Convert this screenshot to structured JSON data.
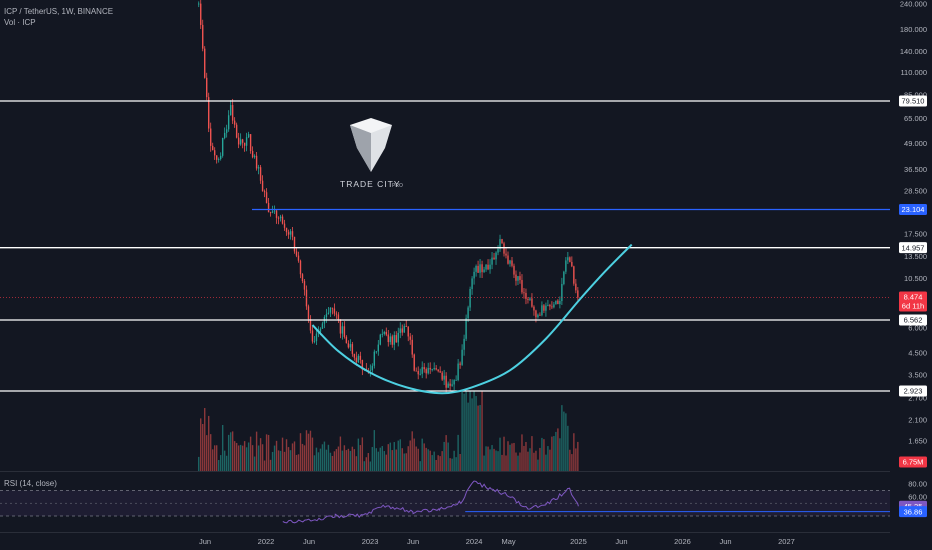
{
  "header": {
    "symbol_line": "ICP / TetherUS, 1W, BINANCE",
    "volume_line": "Vol · ICP"
  },
  "rsi": {
    "label": "RSI (14, close)",
    "value": "45.25",
    "ma_value": "36.86",
    "axis_labels": [
      "80.00",
      "60.00"
    ],
    "upper_band": 70,
    "lower_band": 30
  },
  "watermark": {
    "brand": "TRADE CITY",
    "suffix": "PRO"
  },
  "chart_data": {
    "type": "candlestick",
    "title": "ICP / TetherUS, 1W, BINANCE",
    "y_scale": "log",
    "ylim": [
      1.6,
      240
    ],
    "x_tick_labels": [
      "Jun",
      "2022",
      "Jun",
      "2023",
      "Jun",
      "2024",
      "May",
      "2025",
      "Jun",
      "2026",
      "Jun",
      "2027"
    ],
    "x_tick_dates": [
      "2021-06-01",
      "2022-01-01",
      "2022-06-01",
      "2023-01-01",
      "2023-06-01",
      "2024-01-01",
      "2024-05-01",
      "2025-01-01",
      "2025-06-01",
      "2026-01-01",
      "2026-06-01",
      "2027-01-01"
    ],
    "y_tick_labels": [
      "240.000",
      "180.000",
      "140.000",
      "110.000",
      "85.000",
      "65.000",
      "49.000",
      "36.500",
      "28.500",
      "23.104",
      "17.500",
      "13.500",
      "10.500",
      "8.000",
      "6.000",
      "4.500",
      "3.500",
      "2.700",
      "2.100",
      "1.650"
    ],
    "y_tick_values": [
      240,
      180,
      140,
      110,
      85,
      65,
      49,
      36.5,
      28.5,
      23.104,
      17.5,
      13.5,
      10.5,
      8,
      6,
      4.5,
      3.5,
      2.7,
      2.1,
      1.65
    ],
    "horizontal_levels": [
      {
        "value": 79.51,
        "label": "79.510",
        "color": "#ffffff"
      },
      {
        "value": 23.104,
        "label": "23.104",
        "color": "#2962ff"
      },
      {
        "value": 14.957,
        "label": "14.957",
        "color": "#ffffff"
      },
      {
        "value": 6.562,
        "label": "6.562",
        "color": "#ffffff"
      },
      {
        "value": 2.923,
        "label": "2.923",
        "color": "#ffffff"
      }
    ],
    "last_price": {
      "value": 8.474,
      "label": "8.474",
      "countdown": "6d 11h",
      "color": "#f23645"
    },
    "volume_last": {
      "label": "6.75M",
      "color": "#f23645"
    },
    "weekly_close_path": [
      {
        "date": "2021-05-10",
        "close": 240
      },
      {
        "date": "2021-05-31",
        "close": 110
      },
      {
        "date": "2021-06-21",
        "close": 45
      },
      {
        "date": "2021-07-19",
        "close": 40
      },
      {
        "date": "2021-08-30",
        "close": 75
      },
      {
        "date": "2021-09-27",
        "close": 50
      },
      {
        "date": "2021-11-01",
        "close": 52
      },
      {
        "date": "2021-12-13",
        "close": 33
      },
      {
        "date": "2022-01-10",
        "close": 23
      },
      {
        "date": "2022-03-28",
        "close": 18
      },
      {
        "date": "2022-05-09",
        "close": 10
      },
      {
        "date": "2022-06-13",
        "close": 5.2
      },
      {
        "date": "2022-08-15",
        "close": 7.5
      },
      {
        "date": "2022-10-17",
        "close": 5
      },
      {
        "date": "2022-12-26",
        "close": 3.5
      },
      {
        "date": "2023-02-13",
        "close": 6
      },
      {
        "date": "2023-03-20",
        "close": 5
      },
      {
        "date": "2023-05-08",
        "close": 6.2
      },
      {
        "date": "2023-06-12",
        "close": 3.5
      },
      {
        "date": "2023-08-14",
        "close": 3.8
      },
      {
        "date": "2023-10-16",
        "close": 3
      },
      {
        "date": "2023-11-20",
        "close": 4.5
      },
      {
        "date": "2023-12-25",
        "close": 11
      },
      {
        "date": "2024-03-11",
        "close": 13
      },
      {
        "date": "2024-04-01",
        "close": 16
      },
      {
        "date": "2024-05-27",
        "close": 11
      },
      {
        "date": "2024-08-05",
        "close": 7
      },
      {
        "date": "2024-10-28",
        "close": 8.5
      },
      {
        "date": "2024-11-25",
        "close": 14
      },
      {
        "date": "2024-12-30",
        "close": 8.474
      }
    ],
    "cup_curve": [
      {
        "date": "2022-06-13",
        "value": 6.2
      },
      {
        "date": "2022-09-12",
        "value": 4.6
      },
      {
        "date": "2023-01-02",
        "value": 3.6
      },
      {
        "date": "2023-05-08",
        "value": 3.05
      },
      {
        "date": "2023-09-11",
        "value": 2.85
      },
      {
        "date": "2023-12-25",
        "value": 3.05
      },
      {
        "date": "2024-05-06",
        "value": 3.7
      },
      {
        "date": "2024-09-09",
        "value": 5.3
      },
      {
        "date": "2025-01-06",
        "value": 8.3
      },
      {
        "date": "2025-04-07",
        "value": 11.5
      },
      {
        "date": "2025-07-07",
        "value": 15.5
      }
    ],
    "rsi_series": [
      {
        "date": "2022-03-01",
        "value": 20
      },
      {
        "date": "2022-06-01",
        "value": 23
      },
      {
        "date": "2022-09-01",
        "value": 30
      },
      {
        "date": "2022-12-01",
        "value": 31
      },
      {
        "date": "2023-03-01",
        "value": 46
      },
      {
        "date": "2023-06-01",
        "value": 36
      },
      {
        "date": "2023-09-01",
        "value": 40
      },
      {
        "date": "2023-11-15",
        "value": 52
      },
      {
        "date": "2024-01-01",
        "value": 83
      },
      {
        "date": "2024-03-01",
        "value": 72
      },
      {
        "date": "2024-05-01",
        "value": 62
      },
      {
        "date": "2024-07-01",
        "value": 42
      },
      {
        "date": "2024-09-01",
        "value": 45
      },
      {
        "date": "2024-12-01",
        "value": 72
      },
      {
        "date": "2025-01-01",
        "value": 45.25
      }
    ]
  },
  "colors": {
    "up": "#26a69a",
    "down": "#ef5350",
    "background": "#131722",
    "cup": "#4dd0e1",
    "rsi_line": "#7e57c2",
    "rsi_band": "#7e57c2",
    "rsi_ma": "#2962ff",
    "price_line": "#f23645"
  }
}
